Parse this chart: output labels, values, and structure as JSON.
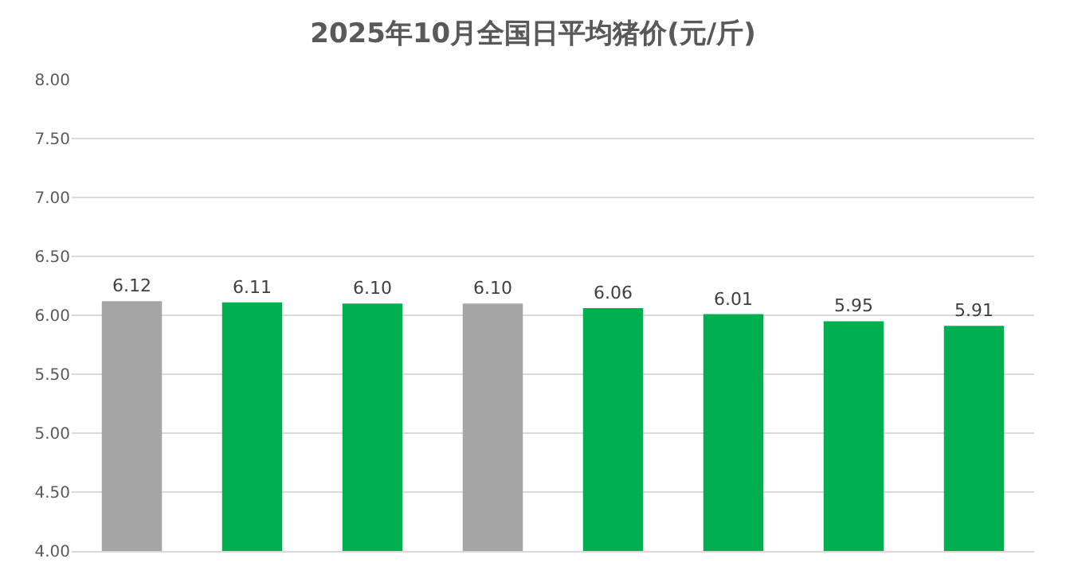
{
  "chart_data": {
    "type": "bar",
    "title": "2025年10月全国日平均猪价(元/斤)",
    "categories": [
      null,
      null,
      null,
      null,
      null,
      null,
      null,
      null
    ],
    "values": [
      6.12,
      6.11,
      6.1,
      6.1,
      6.06,
      6.01,
      5.95,
      5.91
    ],
    "value_labels": [
      "6.12",
      "6.11",
      "6.10",
      "6.10",
      "6.06",
      "6.01",
      "5.95",
      "5.91"
    ],
    "colors": [
      "#a6a6a6",
      "#00b050",
      "#00b050",
      "#a6a6a6",
      "#00b050",
      "#00b050",
      "#00b050",
      "#00b050"
    ],
    "ylim": [
      4,
      8
    ],
    "yticks": [
      {
        "value": 4,
        "label": "4.00"
      },
      {
        "value": 4.5,
        "label": "4.50"
      },
      {
        "value": 5,
        "label": "5.00"
      },
      {
        "value": 5.5,
        "label": "5.50"
      },
      {
        "value": 6,
        "label": "6.00"
      },
      {
        "value": 6.5,
        "label": "6.50"
      },
      {
        "value": 7,
        "label": "7.00"
      },
      {
        "value": 7.5,
        "label": "7.50"
      },
      {
        "value": 8,
        "label": "8.00"
      }
    ],
    "grid": "y"
  }
}
